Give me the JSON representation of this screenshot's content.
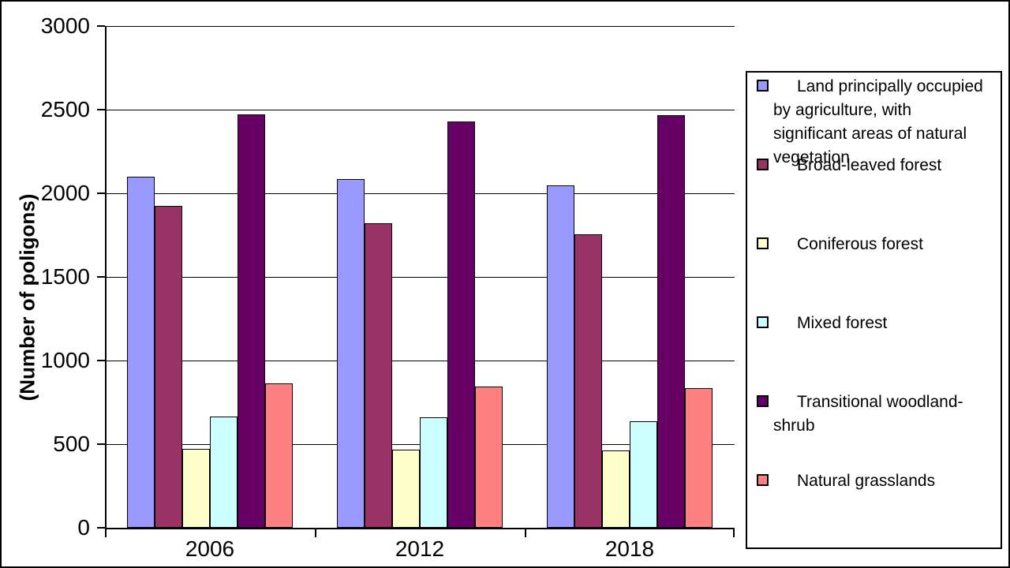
{
  "chart_data": {
    "type": "bar",
    "title": "",
    "ylabel": "(Number of poligons)",
    "xlabel": "",
    "categories": [
      "2006",
      "2012",
      "2018"
    ],
    "series": [
      {
        "name": "Land principally occupied by agriculture, with significant areas of natural vegetation",
        "color": "#9999FF",
        "values": [
          2100,
          2085,
          2045
        ]
      },
      {
        "name": "Broad-leaved forest",
        "color": "#993366",
        "values": [
          1925,
          1820,
          1755
        ]
      },
      {
        "name": "Coniferous forest",
        "color": "#FFFFCC",
        "values": [
          470,
          465,
          460
        ]
      },
      {
        "name": "Mixed forest",
        "color": "#CCFFFF",
        "values": [
          665,
          660,
          635
        ]
      },
      {
        "name": "Transitional woodland-shrub",
        "color": "#660066",
        "values": [
          2470,
          2430,
          2465
        ]
      },
      {
        "name": "Natural grasslands",
        "color": "#FF8080",
        "values": [
          865,
          845,
          835
        ]
      }
    ],
    "ylim": [
      0,
      3000
    ],
    "yticks": [
      0,
      500,
      1000,
      1500,
      2000,
      2500,
      3000
    ],
    "grid": true,
    "legend_position": "right",
    "axis_color": "#000000",
    "bar_border_color": "#000000",
    "plot_background": "#FFFFFF"
  },
  "legend": {
    "items": [
      {
        "label": "Land principally occupied\nby agriculture, with\nsignificant areas of natural\nvegetation",
        "color": "#9999FF"
      },
      {
        "label": "Broad-leaved forest",
        "color": "#993366"
      },
      {
        "label": "Coniferous forest",
        "color": "#FFFFCC"
      },
      {
        "label": "Mixed forest",
        "color": "#CCFFFF"
      },
      {
        "label": "Transitional woodland-\nshrub",
        "color": "#660066"
      },
      {
        "label": "Natural grasslands",
        "color": "#FF8080"
      }
    ]
  }
}
